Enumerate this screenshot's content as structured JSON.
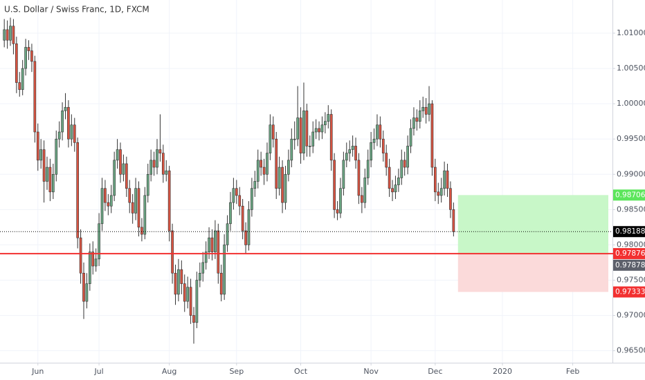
{
  "chart_data": {
    "type": "candlestick",
    "title": "U.S. Dollar / Swiss Franc, 1D, FXCM",
    "open": [
      1.009,
      1.0105,
      1.009,
      1.011,
      1.0085,
      1.003,
      1.002,
      1.005,
      1.008,
      1.0075,
      1.006,
      0.996,
      0.992,
      0.9935,
      0.989,
      0.991,
      0.9875,
      0.99,
      0.995,
      0.996,
      0.999,
      0.9995,
      0.995,
      0.997,
      0.9945,
      0.981,
      0.976,
      0.972,
      0.9745,
      0.979,
      0.977,
      0.978,
      0.983,
      0.988,
      0.986,
      0.9855,
      0.987,
      0.992,
      0.9935,
      0.99,
      0.9915,
      0.988,
      0.986,
      0.9845,
      0.988,
      0.9825,
      0.9815,
      0.987,
      0.99,
      0.992,
      0.991,
      0.9935,
      0.993,
      0.99,
      0.9905,
      0.982,
      0.976,
      0.973,
      0.9765,
      0.9745,
      0.972,
      0.974,
      0.97,
      0.969,
      0.975,
      0.976,
      0.9775,
      0.979,
      0.981,
      0.979,
      0.982,
      0.976,
      0.973,
      0.98,
      0.983,
      0.986,
      0.988,
      0.987,
      0.9855,
      0.982,
      0.98,
      0.985,
      0.988,
      0.989,
      0.992,
      0.991,
      0.99,
      0.993,
      0.997,
      0.995,
      0.988,
      0.991,
      0.986,
      0.99,
      0.992,
      0.995,
      0.995,
      0.998,
      0.993,
      0.999,
      0.994,
      0.994,
      0.996,
      0.9965,
      0.996,
      0.997,
      0.9975,
      0.9985,
      0.992,
      0.985,
      0.9845,
      0.988,
      0.992,
      0.993,
      0.9935,
      0.994,
      0.992,
      0.987,
      0.986,
      0.9895,
      0.992,
      0.9945,
      0.995,
      0.997,
      0.995,
      0.993,
      0.991,
      0.988,
      0.9875,
      0.9885,
      0.9895,
      0.992,
      0.991,
      0.994,
      0.9965,
      0.998,
      0.9975,
      0.999,
      0.9995,
      0.9985,
      1.0,
      0.991,
      0.9875,
      0.987,
      0.988,
      0.9905,
      0.988,
      0.985
    ],
    "high": [
      1.012,
      1.0118,
      1.0122,
      1.012,
      1.0095,
      1.0045,
      1.0062,
      1.0092,
      1.009,
      1.0085,
      1.0068,
      0.9972,
      0.995,
      0.9948,
      0.9925,
      0.9922,
      0.9915,
      0.9962,
      0.9975,
      1.0002,
      1.0015,
      1.0005,
      0.9985,
      0.998,
      0.9952,
      0.9822,
      0.9775,
      0.976,
      0.9802,
      0.9805,
      0.9795,
      0.9845,
      0.9895,
      0.9892,
      0.9872,
      0.9885,
      0.9932,
      0.995,
      0.9945,
      0.9928,
      0.9925,
      0.9892,
      0.9872,
      0.9895,
      0.989,
      0.9838,
      0.9882,
      0.9915,
      0.9935,
      0.9932,
      0.995,
      0.9985,
      0.9942,
      0.992,
      0.9912,
      0.983,
      0.9772,
      0.978,
      0.9778,
      0.9758,
      0.9755,
      0.9752,
      0.9712,
      0.9762,
      0.9775,
      0.979,
      0.9805,
      0.9825,
      0.9822,
      0.9835,
      0.983,
      0.9772,
      0.9815,
      0.9842,
      0.9875,
      0.9895,
      0.9892,
      0.9882,
      0.9865,
      0.9832,
      0.9862,
      0.9895,
      0.9905,
      0.9935,
      0.9932,
      0.9922,
      0.9945,
      0.9985,
      0.9982,
      0.996,
      0.9925,
      0.992,
      0.9912,
      0.9935,
      0.9965,
      0.9975,
      1.0025,
      0.9995,
      1.003,
      1.0,
      0.9955,
      0.9975,
      0.9978,
      0.9975,
      0.9982,
      0.9988,
      0.9998,
      0.9992,
      0.993,
      0.9862,
      0.9895,
      0.9932,
      0.9945,
      0.9948,
      0.9955,
      0.9952,
      0.993,
      0.9882,
      0.9908,
      0.9935,
      0.996,
      0.9965,
      0.9985,
      0.9982,
      0.9962,
      0.9942,
      0.9922,
      0.9892,
      0.9898,
      0.9908,
      0.9935,
      0.9932,
      0.9955,
      0.9978,
      0.9995,
      0.9992,
      1.0005,
      1.001,
      1.0008,
      1.0025,
      1.0005,
      0.9922,
      0.9888,
      0.9895,
      0.9918,
      0.9915,
      0.989,
      0.986
    ],
    "low": [
      1.008,
      1.0078,
      1.0082,
      1.007,
      1.0015,
      1.001,
      1.0012,
      1.004,
      1.0062,
      1.0045,
      0.9945,
      0.9905,
      0.9908,
      0.986,
      0.9878,
      0.9862,
      0.9865,
      0.989,
      0.9938,
      0.9948,
      0.9978,
      0.9938,
      0.994,
      0.9932,
      0.9795,
      0.9745,
      0.9695,
      0.971,
      0.9735,
      0.9758,
      0.9762,
      0.977,
      0.982,
      0.9848,
      0.9842,
      0.9845,
      0.9862,
      0.9908,
      0.9888,
      0.989,
      0.9868,
      0.9845,
      0.983,
      0.9835,
      0.9812,
      0.9805,
      0.9808,
      0.986,
      0.989,
      0.9898,
      0.99,
      0.9918,
      0.9888,
      0.989,
      0.9805,
      0.9745,
      0.9715,
      0.972,
      0.973,
      0.9705,
      0.971,
      0.9688,
      0.966,
      0.9682,
      0.974,
      0.9748,
      0.9765,
      0.978,
      0.9778,
      0.978,
      0.9745,
      0.972,
      0.9722,
      0.979,
      0.982,
      0.985,
      0.9858,
      0.9842,
      0.9808,
      0.9788,
      0.9792,
      0.984,
      0.9868,
      0.988,
      0.9898,
      0.9885,
      0.989,
      0.992,
      0.9938,
      0.9865,
      0.987,
      0.9845,
      0.985,
      0.989,
      0.991,
      0.9935,
      0.994,
      0.9915,
      0.992,
      0.9925,
      0.9925,
      0.993,
      0.995,
      0.9948,
      0.995,
      0.9958,
      0.9965,
      0.9905,
      0.9838,
      0.9835,
      0.9838,
      0.987,
      0.991,
      0.9918,
      0.9925,
      0.9908,
      0.9858,
      0.9845,
      0.9852,
      0.9885,
      0.991,
      0.9935,
      0.994,
      0.9938,
      0.9918,
      0.9898,
      0.9868,
      0.9862,
      0.9865,
      0.9875,
      0.9885,
      0.9898,
      0.99,
      0.993,
      0.9955,
      0.9962,
      0.9965,
      0.998,
      0.9972,
      0.9975,
      0.9898,
      0.9862,
      0.9858,
      0.986,
      0.987,
      0.9868,
      0.9838,
      0.9812
    ],
    "close": [
      1.0105,
      1.009,
      1.011,
      1.0085,
      1.003,
      1.002,
      1.005,
      1.008,
      1.0075,
      1.006,
      0.996,
      0.992,
      0.9935,
      0.989,
      0.991,
      0.9875,
      0.99,
      0.995,
      0.996,
      0.999,
      0.9995,
      0.995,
      0.997,
      0.9945,
      0.981,
      0.976,
      0.972,
      0.9745,
      0.979,
      0.977,
      0.978,
      0.983,
      0.988,
      0.986,
      0.9855,
      0.987,
      0.992,
      0.9935,
      0.99,
      0.9915,
      0.988,
      0.986,
      0.9845,
      0.988,
      0.9825,
      0.9815,
      0.987,
      0.99,
      0.992,
      0.991,
      0.9935,
      0.993,
      0.99,
      0.9905,
      0.982,
      0.976,
      0.973,
      0.9765,
      0.9745,
      0.972,
      0.974,
      0.97,
      0.969,
      0.975,
      0.976,
      0.9775,
      0.979,
      0.981,
      0.979,
      0.982,
      0.976,
      0.973,
      0.98,
      0.983,
      0.986,
      0.988,
      0.987,
      0.9855,
      0.982,
      0.98,
      0.985,
      0.988,
      0.989,
      0.992,
      0.991,
      0.99,
      0.993,
      0.997,
      0.995,
      0.988,
      0.991,
      0.986,
      0.99,
      0.992,
      0.995,
      0.995,
      0.998,
      0.993,
      0.999,
      0.994,
      0.994,
      0.996,
      0.9965,
      0.996,
      0.997,
      0.9975,
      0.9985,
      0.992,
      0.985,
      0.9845,
      0.988,
      0.992,
      0.993,
      0.9935,
      0.994,
      0.992,
      0.987,
      0.986,
      0.9895,
      0.992,
      0.9945,
      0.995,
      0.997,
      0.995,
      0.993,
      0.991,
      0.988,
      0.9875,
      0.9885,
      0.9895,
      0.992,
      0.991,
      0.994,
      0.9965,
      0.998,
      0.9975,
      0.999,
      0.9995,
      0.9985,
      1.0,
      0.991,
      0.9875,
      0.987,
      0.988,
      0.9905,
      0.988,
      0.985,
      0.98188
    ],
    "colors": {
      "up": "#6ba583",
      "down": "#d75442"
    },
    "xlim": [
      -1.4,
      199
    ],
    "xticks": [
      {
        "value": 11,
        "label": "Jun"
      },
      {
        "value": 31,
        "label": "Jul"
      },
      {
        "value": 54,
        "label": "Aug"
      },
      {
        "value": 76,
        "label": "Sep"
      },
      {
        "value": 97,
        "label": "Oct"
      },
      {
        "value": 120,
        "label": "Nov"
      },
      {
        "value": 141,
        "label": "Dec"
      },
      {
        "value": 163,
        "label": "2020"
      },
      {
        "value": 186,
        "label": "Feb"
      }
    ],
    "ylim": [
      0.9633,
      1.0147
    ],
    "yticks": [
      {
        "value": 1.01,
        "label": "1.01000"
      },
      {
        "value": 1.005,
        "label": "1.00500"
      },
      {
        "value": 1.0,
        "label": "1.00000"
      },
      {
        "value": 0.995,
        "label": "0.99500"
      },
      {
        "value": 0.99,
        "label": "0.99000"
      },
      {
        "value": 0.985,
        "label": "0.98500"
      },
      {
        "value": 0.98,
        "label": "0.98000"
      },
      {
        "value": 0.975,
        "label": "0.97500"
      },
      {
        "value": 0.97,
        "label": "0.97000"
      },
      {
        "value": 0.965,
        "label": "0.96500"
      }
    ],
    "grid": true,
    "last_price": 0.98188,
    "position": {
      "target": 0.98706,
      "entry": 0.97876,
      "marker": 0.97878,
      "stop": 0.97333,
      "colors": {
        "profit": "#c8f7c8",
        "loss": "#fbdada",
        "target": "#5ce65c",
        "entry": "#f23030",
        "marker": "#5d606b",
        "stop": "#f23030",
        "last": "#000000"
      }
    }
  }
}
